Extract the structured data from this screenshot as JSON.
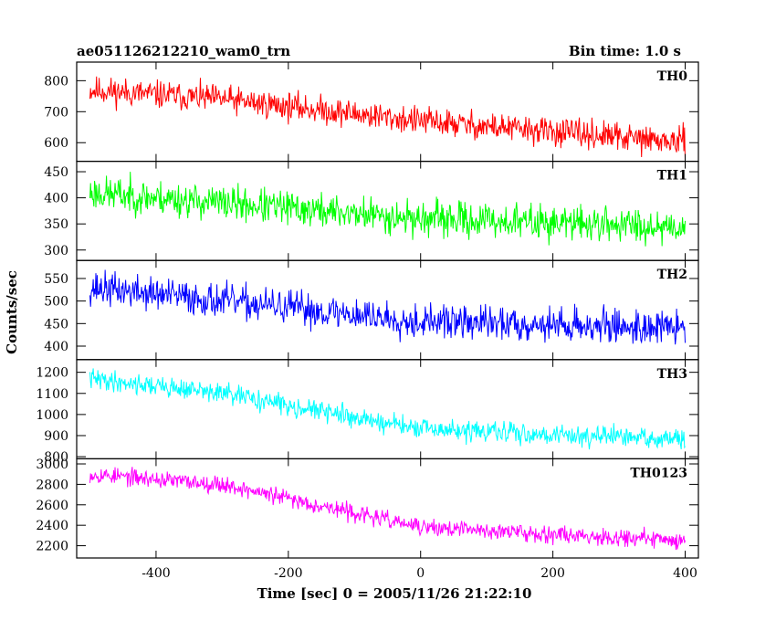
{
  "header": {
    "title": "ae051126212210_wam0_trn",
    "bin_time": "Bin time: 1.0 s"
  },
  "xlabel": "Time [sec] 0 = 2005/11/26 21:22:10",
  "ylabel": "Counts/sec",
  "chart_data": {
    "type": "line",
    "x_range": [
      -500,
      400
    ],
    "xlim": [
      -520,
      420
    ],
    "x_ticks": [
      -400,
      -200,
      0,
      200,
      400
    ],
    "x_step": 1,
    "grid": false,
    "panels": [
      {
        "name": "TH0",
        "color": "#ff0000",
        "ylim": [
          540,
          860
        ],
        "y_ticks": [
          600,
          700,
          800
        ],
        "trend": [
          [
            -500,
            770
          ],
          [
            -300,
            740
          ],
          [
            0,
            670
          ],
          [
            400,
            600
          ]
        ],
        "noise": 30,
        "seed": 11
      },
      {
        "name": "TH1",
        "color": "#00ff00",
        "ylim": [
          280,
          470
        ],
        "y_ticks": [
          300,
          350,
          400,
          450
        ],
        "trend": [
          [
            -500,
            410
          ],
          [
            -300,
            390
          ],
          [
            0,
            360
          ],
          [
            400,
            345
          ]
        ],
        "noise": 22,
        "seed": 23
      },
      {
        "name": "TH2",
        "color": "#0000ff",
        "ylim": [
          370,
          590
        ],
        "y_ticks": [
          400,
          450,
          500,
          550
        ],
        "trend": [
          [
            -500,
            530
          ],
          [
            -300,
            500
          ],
          [
            0,
            455
          ],
          [
            400,
            440
          ]
        ],
        "noise": 25,
        "seed": 37
      },
      {
        "name": "TH3",
        "color": "#00ffff",
        "ylim": [
          790,
          1260
        ],
        "y_ticks": [
          800,
          900,
          1000,
          1100,
          1200
        ],
        "trend": [
          [
            -500,
            1170
          ],
          [
            -300,
            1100
          ],
          [
            0,
            930
          ],
          [
            400,
            880
          ]
        ],
        "noise": 32,
        "seed": 41
      },
      {
        "name": "TH0123",
        "color": "#ff00ff",
        "ylim": [
          2080,
          3050
        ],
        "y_ticks": [
          2200,
          2400,
          2600,
          2800,
          3000
        ],
        "trend": [
          [
            -500,
            2900
          ],
          [
            -300,
            2800
          ],
          [
            0,
            2380
          ],
          [
            400,
            2250
          ]
        ],
        "noise": 55,
        "seed": 53
      }
    ]
  }
}
